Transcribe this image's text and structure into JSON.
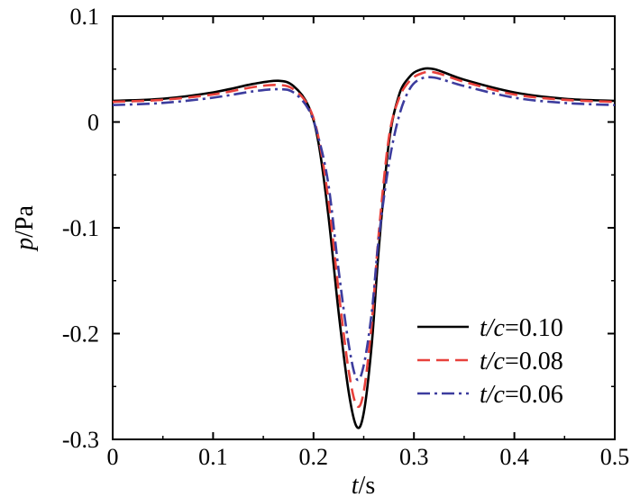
{
  "chart_data": {
    "type": "line",
    "title": "",
    "xlabel_var": "t",
    "xlabel_unit": "/s",
    "ylabel_var": "p",
    "ylabel_unit": "/Pa",
    "xlim": [
      0,
      0.5
    ],
    "ylim": [
      -0.3,
      0.1
    ],
    "xticks": [
      0,
      0.1,
      0.2,
      0.3,
      0.4,
      0.5
    ],
    "xtick_labels": [
      "0",
      "0.1",
      "0.2",
      "0.3",
      "0.4",
      "0.5"
    ],
    "yticks": [
      0.1,
      0,
      -0.1,
      -0.2,
      -0.3
    ],
    "ytick_labels": [
      "0.1",
      "0",
      "-0.1",
      "-0.2",
      "-0.3"
    ],
    "grid": false,
    "legend_position": "bottom-right",
    "x": [
      0,
      0.05,
      0.1,
      0.14,
      0.165,
      0.18,
      0.195,
      0.205,
      0.215,
      0.225,
      0.235,
      0.243,
      0.25,
      0.258,
      0.265,
      0.275,
      0.285,
      0.295,
      0.305,
      0.32,
      0.35,
      0.4,
      0.45,
      0.5
    ],
    "series": [
      {
        "name_var": "t/c",
        "name_value": "=0.10",
        "color": "#000000",
        "dash": "solid",
        "values": [
          0.02,
          0.022,
          0.028,
          0.036,
          0.039,
          0.034,
          0.015,
          -0.02,
          -0.09,
          -0.18,
          -0.255,
          -0.288,
          -0.275,
          -0.21,
          -0.12,
          -0.02,
          0.025,
          0.042,
          0.049,
          0.05,
          0.04,
          0.028,
          0.022,
          0.02
        ]
      },
      {
        "name_var": "t/c",
        "name_value": "=0.08",
        "color": "#e8413c",
        "dash": "dashed",
        "values": [
          0.019,
          0.021,
          0.026,
          0.033,
          0.035,
          0.031,
          0.015,
          -0.015,
          -0.075,
          -0.16,
          -0.235,
          -0.268,
          -0.255,
          -0.19,
          -0.105,
          -0.015,
          0.022,
          0.038,
          0.045,
          0.047,
          0.038,
          0.026,
          0.021,
          0.019
        ]
      },
      {
        "name_var": "t/c",
        "name_value": "=0.06",
        "color": "#3c3c9e",
        "dash": "dashdot",
        "values": [
          0.016,
          0.018,
          0.023,
          0.029,
          0.031,
          0.028,
          0.012,
          -0.015,
          -0.06,
          -0.14,
          -0.21,
          -0.243,
          -0.23,
          -0.18,
          -0.11,
          -0.04,
          0.005,
          0.03,
          0.04,
          0.042,
          0.034,
          0.023,
          0.018,
          0.016
        ]
      }
    ]
  }
}
